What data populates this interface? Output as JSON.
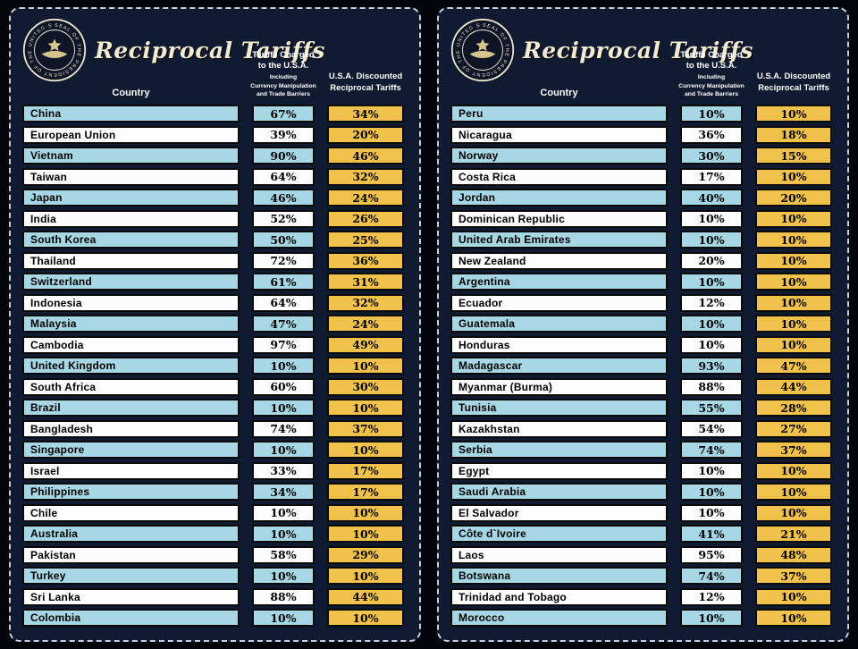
{
  "colors": {
    "background": "#101a30",
    "row_blue": "#a7d6e4",
    "row_white": "#ffffff",
    "value_gold": "#f1c24b",
    "title_cream": "#f1ead2",
    "dashed_border": "#c9cedd"
  },
  "seal": {
    "ring_text": "SEAL OF THE PRESIDENT OF THE UNITED STATES"
  },
  "panels": [
    {
      "title": "Reciprocal Tariffs",
      "headers": {
        "country": "Country",
        "charged_title": "Tariffs Charged\nto the U.S.A.",
        "charged_sub": "Including\nCurrency Manipulation\nand Trade Barriers",
        "discounted": "U.S.A. Discounted\nReciprocal Tariffs"
      }
    },
    {
      "title": "Reciprocal Tariffs",
      "headers": {
        "country": "Country",
        "charged_title": "Tariffs Charged\nto the U.S.A.",
        "charged_sub": "Including\nCurrency Manipulation\nand Trade Barriers",
        "discounted": "U.S.A. Discounted\nReciprocal Tariffs"
      }
    }
  ],
  "chart_data": [
    {
      "type": "table",
      "title": "Reciprocal Tariffs",
      "columns": [
        "Country",
        "Tariffs Charged to the U.S.A. Including Currency Manipulation and Trade Barriers",
        "U.S.A. Discounted Reciprocal Tariffs"
      ],
      "rows": [
        [
          "China",
          "67%",
          "34%"
        ],
        [
          "European Union",
          "39%",
          "20%"
        ],
        [
          "Vietnam",
          "90%",
          "46%"
        ],
        [
          "Taiwan",
          "64%",
          "32%"
        ],
        [
          "Japan",
          "46%",
          "24%"
        ],
        [
          "India",
          "52%",
          "26%"
        ],
        [
          "South Korea",
          "50%",
          "25%"
        ],
        [
          "Thailand",
          "72%",
          "36%"
        ],
        [
          "Switzerland",
          "61%",
          "31%"
        ],
        [
          "Indonesia",
          "64%",
          "32%"
        ],
        [
          "Malaysia",
          "47%",
          "24%"
        ],
        [
          "Cambodia",
          "97%",
          "49%"
        ],
        [
          "United Kingdom",
          "10%",
          "10%"
        ],
        [
          "South Africa",
          "60%",
          "30%"
        ],
        [
          "Brazil",
          "10%",
          "10%"
        ],
        [
          "Bangladesh",
          "74%",
          "37%"
        ],
        [
          "Singapore",
          "10%",
          "10%"
        ],
        [
          "Israel",
          "33%",
          "17%"
        ],
        [
          "Philippines",
          "34%",
          "17%"
        ],
        [
          "Chile",
          "10%",
          "10%"
        ],
        [
          "Australia",
          "10%",
          "10%"
        ],
        [
          "Pakistan",
          "58%",
          "29%"
        ],
        [
          "Turkey",
          "10%",
          "10%"
        ],
        [
          "Sri Lanka",
          "88%",
          "44%"
        ],
        [
          "Colombia",
          "10%",
          "10%"
        ]
      ]
    },
    {
      "type": "table",
      "title": "Reciprocal Tariffs",
      "columns": [
        "Country",
        "Tariffs Charged to the U.S.A. Including Currency Manipulation and Trade Barriers",
        "U.S.A. Discounted Reciprocal Tariffs"
      ],
      "rows": [
        [
          "Peru",
          "10%",
          "10%"
        ],
        [
          "Nicaragua",
          "36%",
          "18%"
        ],
        [
          "Norway",
          "30%",
          "15%"
        ],
        [
          "Costa Rica",
          "17%",
          "10%"
        ],
        [
          "Jordan",
          "40%",
          "20%"
        ],
        [
          "Dominican Republic",
          "10%",
          "10%"
        ],
        [
          "United Arab Emirates",
          "10%",
          "10%"
        ],
        [
          "New Zealand",
          "20%",
          "10%"
        ],
        [
          "Argentina",
          "10%",
          "10%"
        ],
        [
          "Ecuador",
          "12%",
          "10%"
        ],
        [
          "Guatemala",
          "10%",
          "10%"
        ],
        [
          "Honduras",
          "10%",
          "10%"
        ],
        [
          "Madagascar",
          "93%",
          "47%"
        ],
        [
          "Myanmar (Burma)",
          "88%",
          "44%"
        ],
        [
          "Tunisia",
          "55%",
          "28%"
        ],
        [
          "Kazakhstan",
          "54%",
          "27%"
        ],
        [
          "Serbia",
          "74%",
          "37%"
        ],
        [
          "Egypt",
          "10%",
          "10%"
        ],
        [
          "Saudi Arabia",
          "10%",
          "10%"
        ],
        [
          "El Salvador",
          "10%",
          "10%"
        ],
        [
          "Côte d`Ivoire",
          "41%",
          "21%"
        ],
        [
          "Laos",
          "95%",
          "48%"
        ],
        [
          "Botswana",
          "74%",
          "37%"
        ],
        [
          "Trinidad and Tobago",
          "12%",
          "10%"
        ],
        [
          "Morocco",
          "10%",
          "10%"
        ]
      ]
    }
  ]
}
